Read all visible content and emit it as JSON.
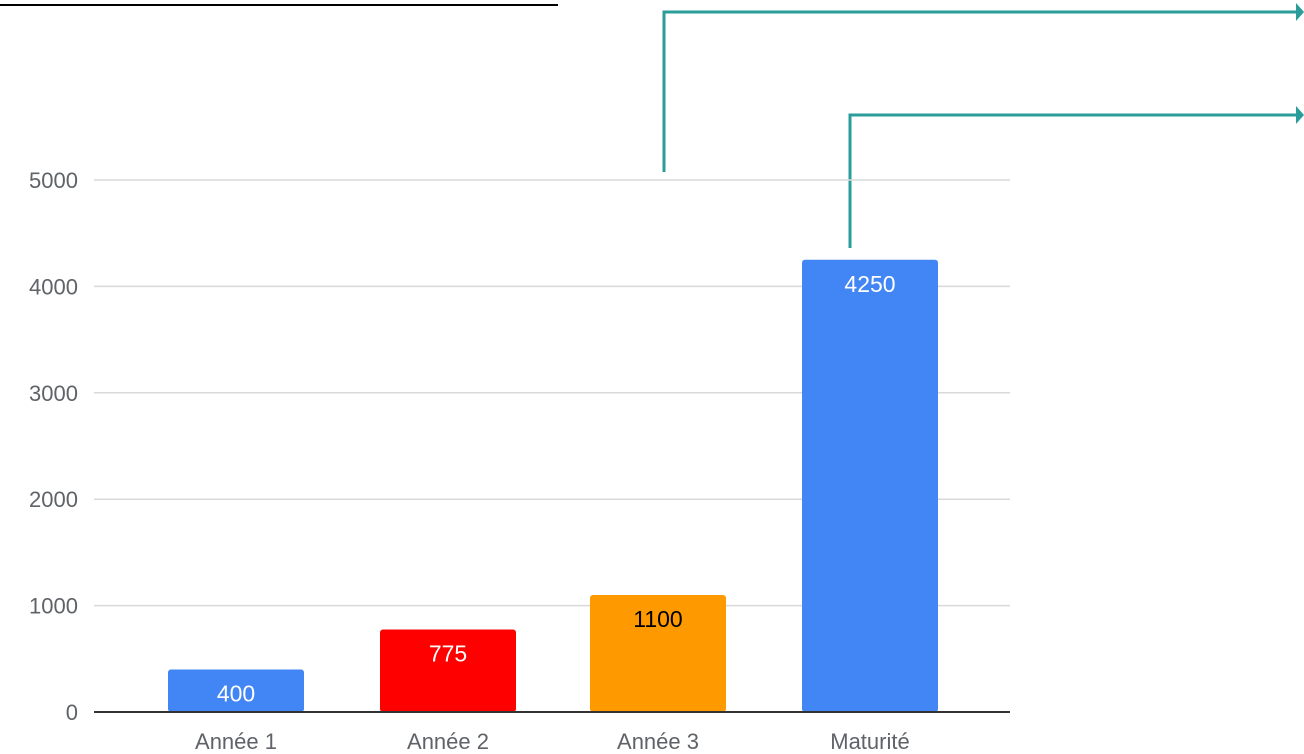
{
  "chart_data": {
    "type": "bar",
    "categories": [
      "Année 1",
      "Année 2",
      "Année 3",
      "Maturité"
    ],
    "values": [
      400,
      775,
      1100,
      4250
    ],
    "bar_colors": [
      "#4285f4",
      "#ff0000",
      "#ff9900",
      "#4285f4"
    ],
    "label_colors": [
      "#ffffff",
      "#ffffff",
      "#000000",
      "#ffffff"
    ],
    "title": "",
    "xlabel": "",
    "ylabel": "",
    "ylim": [
      0,
      5000
    ],
    "yticks": [
      "0",
      "1000",
      "2000",
      "3000",
      "4000",
      "5000"
    ],
    "grid": true,
    "legend": "none"
  },
  "colors": {
    "gridline": "#d9d9d9",
    "baseline": "#333333",
    "callout": "#2a9d9a",
    "decor_line": "#000000"
  }
}
